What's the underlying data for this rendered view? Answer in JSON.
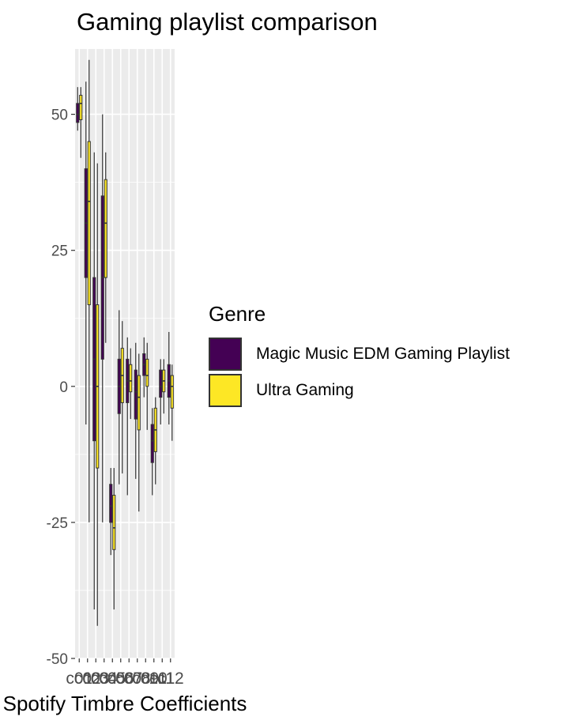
{
  "chart_data": {
    "type": "boxplot",
    "title": "Gaming playlist comparison",
    "xlabel": "Spotify Timbre Coefficients",
    "ylabel": "",
    "ylim": [
      -50,
      62
    ],
    "yticks": [
      -50,
      -25,
      0,
      25,
      50
    ],
    "grid": true,
    "legend_title": "Genre",
    "legend_position": "right",
    "categories": [
      "c01",
      "c02",
      "c03",
      "c04",
      "c05",
      "c06",
      "c07",
      "c08",
      "c09",
      "c10",
      "c11",
      "c12"
    ],
    "series": [
      {
        "name": "Magic Music EDM Gaming Playlist",
        "color": "#440154",
        "boxes": [
          {
            "min": 47,
            "q1": 48.5,
            "median": 50,
            "q3": 52,
            "max": 55
          },
          {
            "min": -7,
            "q1": 20,
            "median": 30,
            "q3": 40,
            "max": 56
          },
          {
            "min": -41,
            "q1": -10,
            "median": 5,
            "q3": 20,
            "max": 43
          },
          {
            "min": -25,
            "q1": 5,
            "median": 20,
            "q3": 35,
            "max": 50
          },
          {
            "min": -31,
            "q1": -25,
            "median": -22,
            "q3": -18,
            "max": -15
          },
          {
            "min": -18,
            "q1": -5,
            "median": 0,
            "q3": 5,
            "max": 14
          },
          {
            "min": -20,
            "q1": -3,
            "median": 1,
            "q3": 5,
            "max": 9
          },
          {
            "min": -17,
            "q1": -6,
            "median": -1,
            "q3": 3,
            "max": 8
          },
          {
            "min": -2,
            "q1": 2,
            "median": 4,
            "q3": 6,
            "max": 9
          },
          {
            "min": -20,
            "q1": -14,
            "median": -10,
            "q3": -7,
            "max": -4
          },
          {
            "min": -7,
            "q1": -2,
            "median": 0,
            "q3": 3,
            "max": 5
          },
          {
            "min": -7,
            "q1": -2,
            "median": 1,
            "q3": 4,
            "max": 10
          }
        ]
      },
      {
        "name": "Ultra Gaming",
        "color": "#fde725",
        "boxes": [
          {
            "min": 42,
            "q1": 49,
            "median": 52,
            "q3": 53.5,
            "max": 55
          },
          {
            "min": -25,
            "q1": 15,
            "median": 34,
            "q3": 45,
            "max": 60
          },
          {
            "min": -44,
            "q1": -15,
            "median": 0,
            "q3": 15,
            "max": 41
          },
          {
            "min": 8,
            "q1": 20,
            "median": 30,
            "q3": 38,
            "max": 43
          },
          {
            "min": -41,
            "q1": -30,
            "median": -26,
            "q3": -20,
            "max": -15
          },
          {
            "min": -16,
            "q1": -3,
            "median": 2,
            "q3": 7,
            "max": 12
          },
          {
            "min": -6,
            "q1": -1,
            "median": 1,
            "q3": 4,
            "max": 7
          },
          {
            "min": -23,
            "q1": -8,
            "median": -2,
            "q3": 2,
            "max": 6
          },
          {
            "min": -8,
            "q1": 0,
            "median": 2,
            "q3": 5,
            "max": 8
          },
          {
            "min": -18,
            "q1": -12,
            "median": -8,
            "q3": -4,
            "max": -2
          },
          {
            "min": -5,
            "q1": -1,
            "median": 1,
            "q3": 3,
            "max": 5
          },
          {
            "min": -10,
            "q1": -4,
            "median": 0,
            "q3": 2,
            "max": 4
          }
        ]
      }
    ]
  }
}
